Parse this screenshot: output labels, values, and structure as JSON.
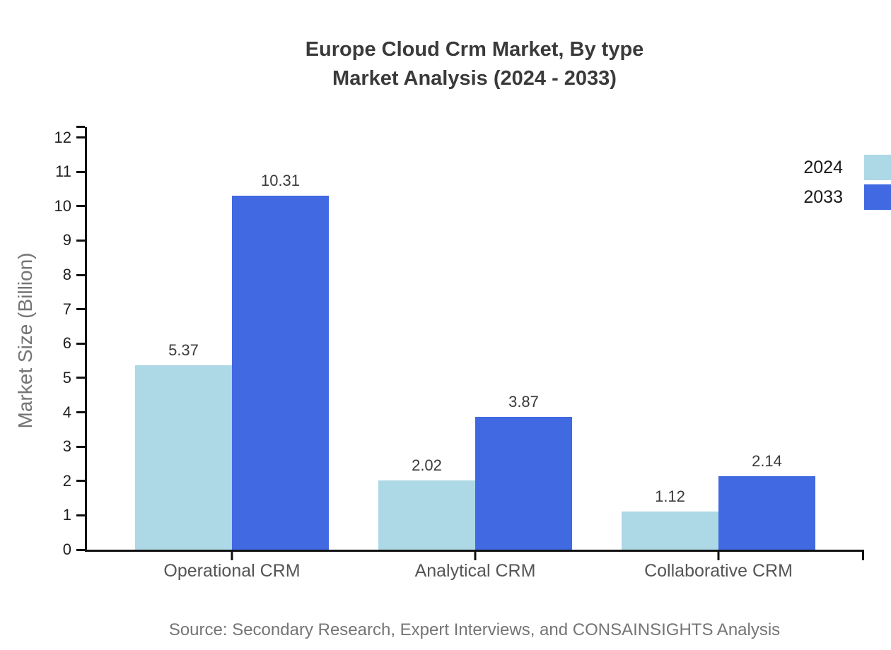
{
  "title": {
    "line1": "Europe Cloud Crm Market, By type",
    "line2": "Market Analysis (2024 - 2033)"
  },
  "source": "Source: Secondary Research, Expert Interviews, and CONSAINSIGHTS Analysis",
  "chart_data": {
    "type": "bar",
    "title": "Europe Cloud Crm Market, By type Market Analysis (2024 - 2033)",
    "categories": [
      "Operational CRM",
      "Analytical CRM",
      "Collaborative CRM"
    ],
    "series": [
      {
        "name": "2024",
        "color": "#ADD8E6",
        "values": [
          5.37,
          2.02,
          1.12
        ]
      },
      {
        "name": "2033",
        "color": "#4169E1",
        "values": [
          10.31,
          3.87,
          2.14
        ]
      }
    ],
    "xlabel": "",
    "ylabel": "Market Size (Billion)",
    "yticks": [
      0,
      1,
      2,
      3,
      4,
      5,
      6,
      7,
      8,
      9,
      10,
      11,
      12
    ],
    "ylim": [
      0,
      12.3
    ],
    "grid": false,
    "legend_position": "top-right",
    "value_labels": true,
    "axis_color": "#111111"
  }
}
